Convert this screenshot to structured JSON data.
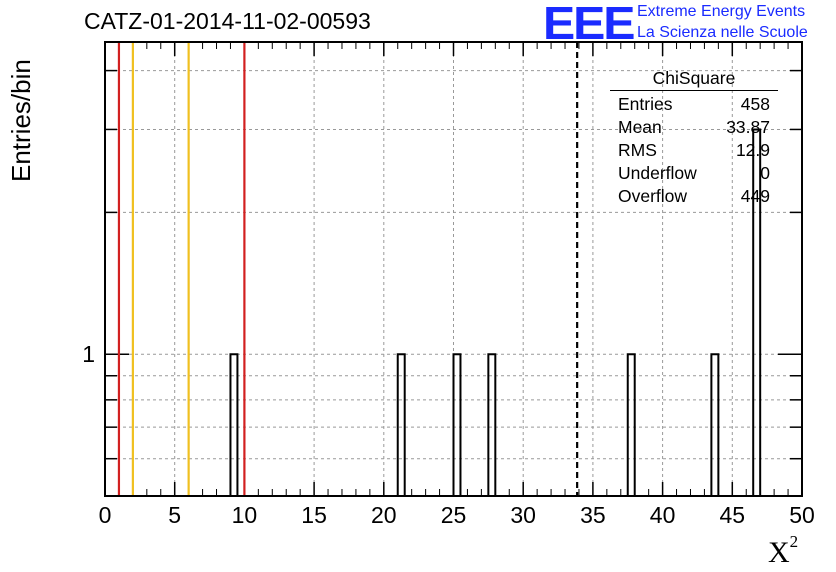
{
  "chart_data": {
    "type": "bar",
    "title": "CATZ-01-2014-11-02-00593",
    "xlabel": "X",
    "xlabel_sup": "2",
    "ylabel": "Entries/bin",
    "xlim": [
      0,
      50
    ],
    "ylim": [
      0.5,
      4.6
    ],
    "yscale": "log",
    "grid": true,
    "xticks": [
      "0",
      "5",
      "10",
      "15",
      "20",
      "25",
      "30",
      "35",
      "40",
      "45",
      "50"
    ],
    "yticks": [
      "1"
    ],
    "bin_width": 0.5,
    "bins": [
      {
        "x_low": 9.0,
        "value": 1
      },
      {
        "x_low": 21.0,
        "value": 1
      },
      {
        "x_low": 25.0,
        "value": 1
      },
      {
        "x_low": 27.5,
        "value": 1
      },
      {
        "x_low": 37.5,
        "value": 1
      },
      {
        "x_low": 43.5,
        "value": 1
      },
      {
        "x_low": 46.5,
        "value": 3
      }
    ],
    "vertical_lines": [
      {
        "x": 1,
        "color": "#d22020",
        "style": "solid"
      },
      {
        "x": 2,
        "color": "#f0c020",
        "style": "solid"
      },
      {
        "x": 6,
        "color": "#f0c020",
        "style": "solid"
      },
      {
        "x": 10,
        "color": "#d22020",
        "style": "solid"
      },
      {
        "x": 33.87,
        "color": "#000000",
        "style": "dashed"
      }
    ],
    "stats_box": {
      "title": "ChiSquare",
      "rows": [
        {
          "label": "Entries",
          "value": "458"
        },
        {
          "label": "Mean",
          "value": "33.87"
        },
        {
          "label": "RMS",
          "value": "12.9"
        },
        {
          "label": "Underflow",
          "value": "0"
        },
        {
          "label": "Overflow",
          "value": "449"
        }
      ]
    },
    "legend_placement": "top-right"
  },
  "logo": {
    "mark": "EEE",
    "line1": "Extreme Energy Events",
    "line2": "La Scienza nelle Scuole",
    "color": "#1a2bff"
  }
}
